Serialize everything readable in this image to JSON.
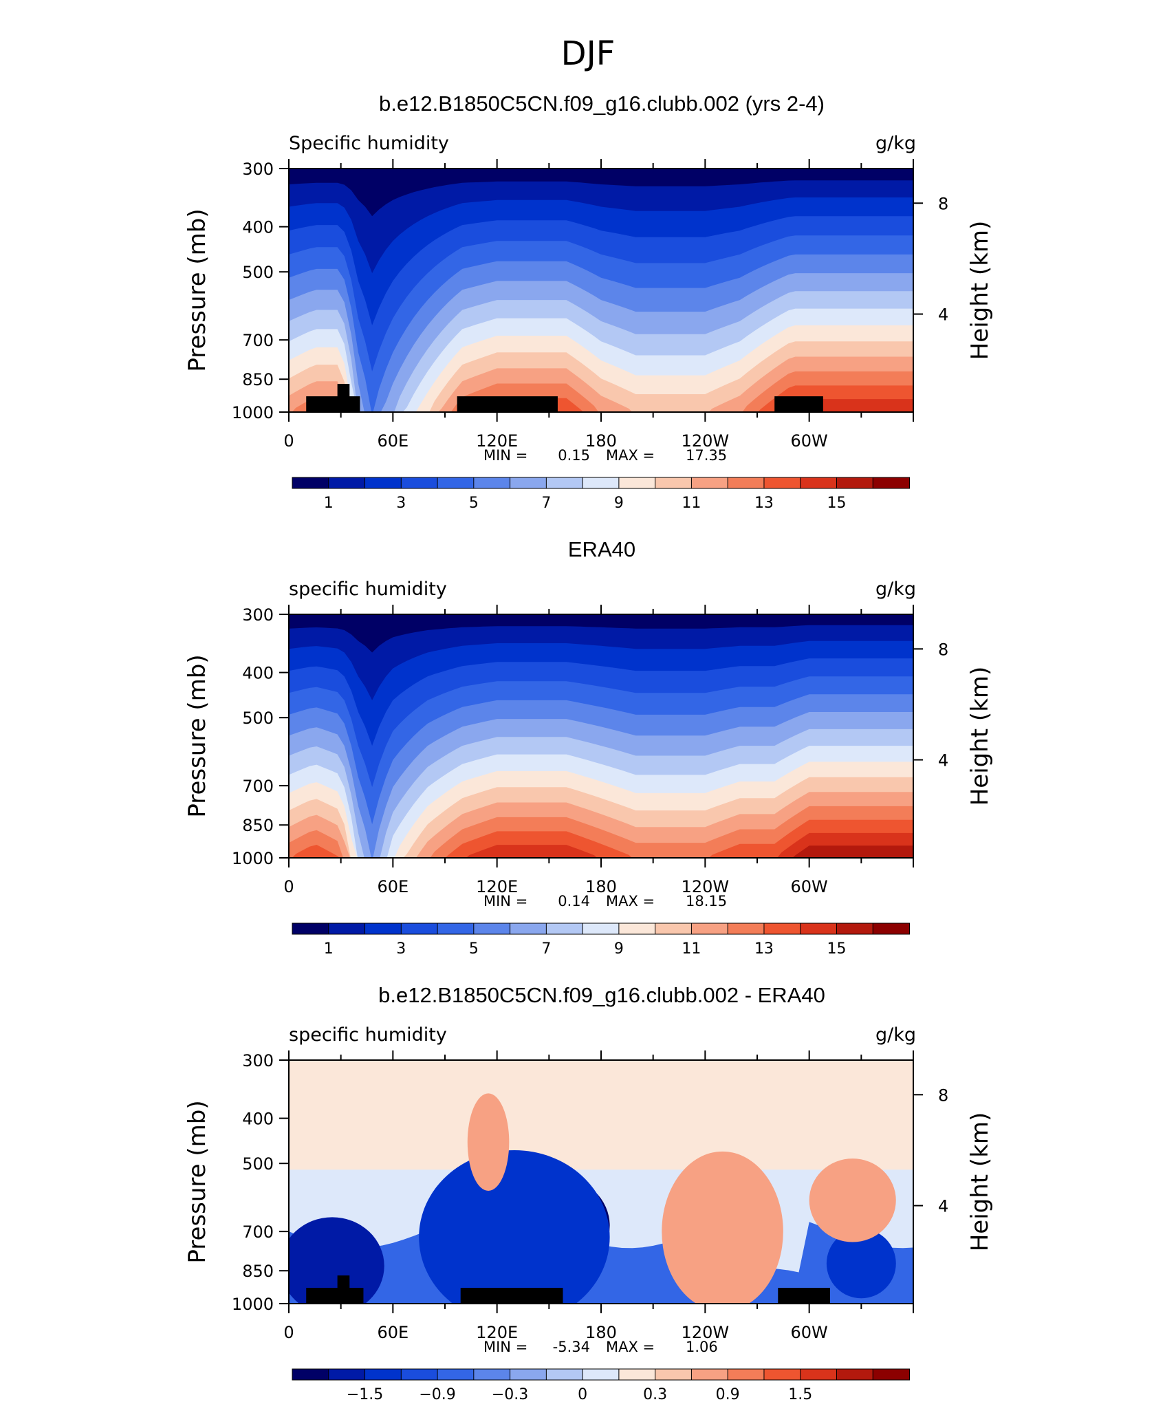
{
  "figure": {
    "title": "DJF"
  },
  "chart_data": [
    {
      "type": "heatmap",
      "title": "b.e12.B1850C5CN.f09_g16.clubb.002 (yrs 2-4)",
      "subtitle_left": "Specific humidity",
      "units": "g/kg",
      "ylabel": "Pressure (mb)",
      "ylabel_right": "Height (km)",
      "xticks": [
        "0",
        "60E",
        "120E",
        "180",
        "120W",
        "60W"
      ],
      "yticks": [
        "300",
        "400",
        "500",
        "700",
        "850",
        "1000"
      ],
      "yticks_right": [
        "8",
        "4"
      ],
      "min_label": "MIN =",
      "min_value": "0.15",
      "max_label": "MAX =",
      "max_value": "17.35",
      "colorbar_ticks": [
        "1",
        "3",
        "5",
        "7",
        "9",
        "11",
        "13",
        "15"
      ],
      "colorbar_colors": [
        "#000066",
        "#001aa6",
        "#0033cc",
        "#1a4ddd",
        "#3366e6",
        "#5c85ea",
        "#8aa7ee",
        "#b3c8f4",
        "#dde8fa",
        "#fbe7d9",
        "#f9c7ad",
        "#f7a183",
        "#f37d58",
        "#ee5530",
        "#d9331b",
        "#b3190d",
        "#8c0000"
      ],
      "profile": {
        "lon": [
          0,
          15,
          30,
          40,
          48,
          60,
          80,
          100,
          120,
          140,
          160,
          180,
          200,
          220,
          240,
          260,
          280,
          290,
          300,
          320,
          340,
          360
        ],
        "top": [
          12,
          13,
          13,
          7,
          5,
          7,
          10,
          13,
          14,
          14,
          14,
          12,
          11,
          11,
          11,
          12,
          14,
          15,
          15,
          15,
          15,
          15
        ]
      },
      "topography": [
        {
          "lon": [
            10,
            41
          ],
          "p": 925
        },
        {
          "lon": [
            28,
            35
          ],
          "p": 870
        },
        {
          "lon": [
            97,
            155
          ],
          "p": 925
        },
        {
          "lon": [
            280,
            308
          ],
          "p": 925
        }
      ]
    },
    {
      "type": "heatmap",
      "title": "ERA40",
      "subtitle_left": "specific humidity",
      "units": "g/kg",
      "ylabel": "Pressure (mb)",
      "ylabel_right": "Height (km)",
      "xticks": [
        "0",
        "60E",
        "120E",
        "180",
        "120W",
        "60W"
      ],
      "yticks": [
        "300",
        "400",
        "500",
        "700",
        "850",
        "1000"
      ],
      "yticks_right": [
        "8",
        "4"
      ],
      "min_label": "MIN =",
      "min_value": "0.14",
      "max_label": "MAX =",
      "max_value": "18.15",
      "colorbar_ticks": [
        "1",
        "3",
        "5",
        "7",
        "9",
        "11",
        "13",
        "15"
      ],
      "colorbar_colors": [
        "#000066",
        "#001aa6",
        "#0033cc",
        "#1a4ddd",
        "#3366e6",
        "#5c85ea",
        "#8aa7ee",
        "#b3c8f4",
        "#dde8fa",
        "#fbe7d9",
        "#f9c7ad",
        "#f7a183",
        "#f37d58",
        "#ee5530",
        "#d9331b",
        "#b3190d",
        "#8c0000"
      ],
      "profile": {
        "lon": [
          0,
          15,
          30,
          40,
          48,
          60,
          80,
          100,
          120,
          140,
          160,
          180,
          200,
          220,
          240,
          260,
          280,
          290,
          300,
          320,
          340,
          360
        ],
        "top": [
          13,
          14,
          13,
          8,
          6,
          9,
          12,
          14,
          15,
          15,
          15,
          14,
          13,
          13,
          13,
          14,
          14,
          15,
          16,
          16,
          16,
          16
        ]
      },
      "topography": []
    },
    {
      "type": "heatmap",
      "title": "b.e12.B1850C5CN.f09_g16.clubb.002 - ERA40",
      "subtitle_left": "specific humidity",
      "units": "g/kg",
      "ylabel": "Pressure (mb)",
      "ylabel_right": "Height (km)",
      "xticks": [
        "0",
        "60E",
        "120E",
        "180",
        "120W",
        "60W"
      ],
      "yticks": [
        "300",
        "400",
        "500",
        "700",
        "850",
        "1000"
      ],
      "yticks_right": [
        "8",
        "4"
      ],
      "min_label": "MIN =",
      "min_value": "-5.34",
      "max_label": "MAX =",
      "max_value": "1.06",
      "colorbar_ticks": [
        "−1.5",
        "−0.9",
        "−0.3",
        "0",
        "0.3",
        "0.9",
        "1.5"
      ],
      "colorbar_colors": [
        "#000066",
        "#001aa6",
        "#0033cc",
        "#1a4ddd",
        "#3366e6",
        "#5c85ea",
        "#8aa7ee",
        "#b3c8f4",
        "#dde8fa",
        "#fbe7d9",
        "#f9c7ad",
        "#f7a183",
        "#f37d58",
        "#ee5530",
        "#d9331b",
        "#b3190d",
        "#8c0000"
      ],
      "blobs": [
        {
          "lon": 155,
          "p": 680,
          "rx": 30,
          "ry": 140,
          "level": 0
        },
        {
          "lon": 130,
          "p": 720,
          "rx": 55,
          "ry": 250,
          "level": 2
        },
        {
          "lon": 25,
          "p": 830,
          "rx": 30,
          "ry": 140,
          "level": 1
        },
        {
          "lon": 330,
          "p": 820,
          "rx": 20,
          "ry": 100,
          "level": 2
        },
        {
          "lon": 245,
          "p": 730,
          "rx": 22,
          "ry": 130,
          "level": 13
        },
        {
          "lon": 250,
          "p": 700,
          "rx": 35,
          "ry": 230,
          "level": 11
        },
        {
          "lon": 115,
          "p": 450,
          "rx": 12,
          "ry": 140,
          "level": 11
        },
        {
          "lon": 325,
          "p": 600,
          "rx": 25,
          "ry": 120,
          "level": 11
        }
      ],
      "topography": [
        {
          "lon": [
            10,
            43
          ],
          "p": 925
        },
        {
          "lon": [
            28,
            35
          ],
          "p": 870
        },
        {
          "lon": [
            99,
            158
          ],
          "p": 925
        },
        {
          "lon": [
            282,
            312
          ],
          "p": 925
        }
      ]
    }
  ]
}
